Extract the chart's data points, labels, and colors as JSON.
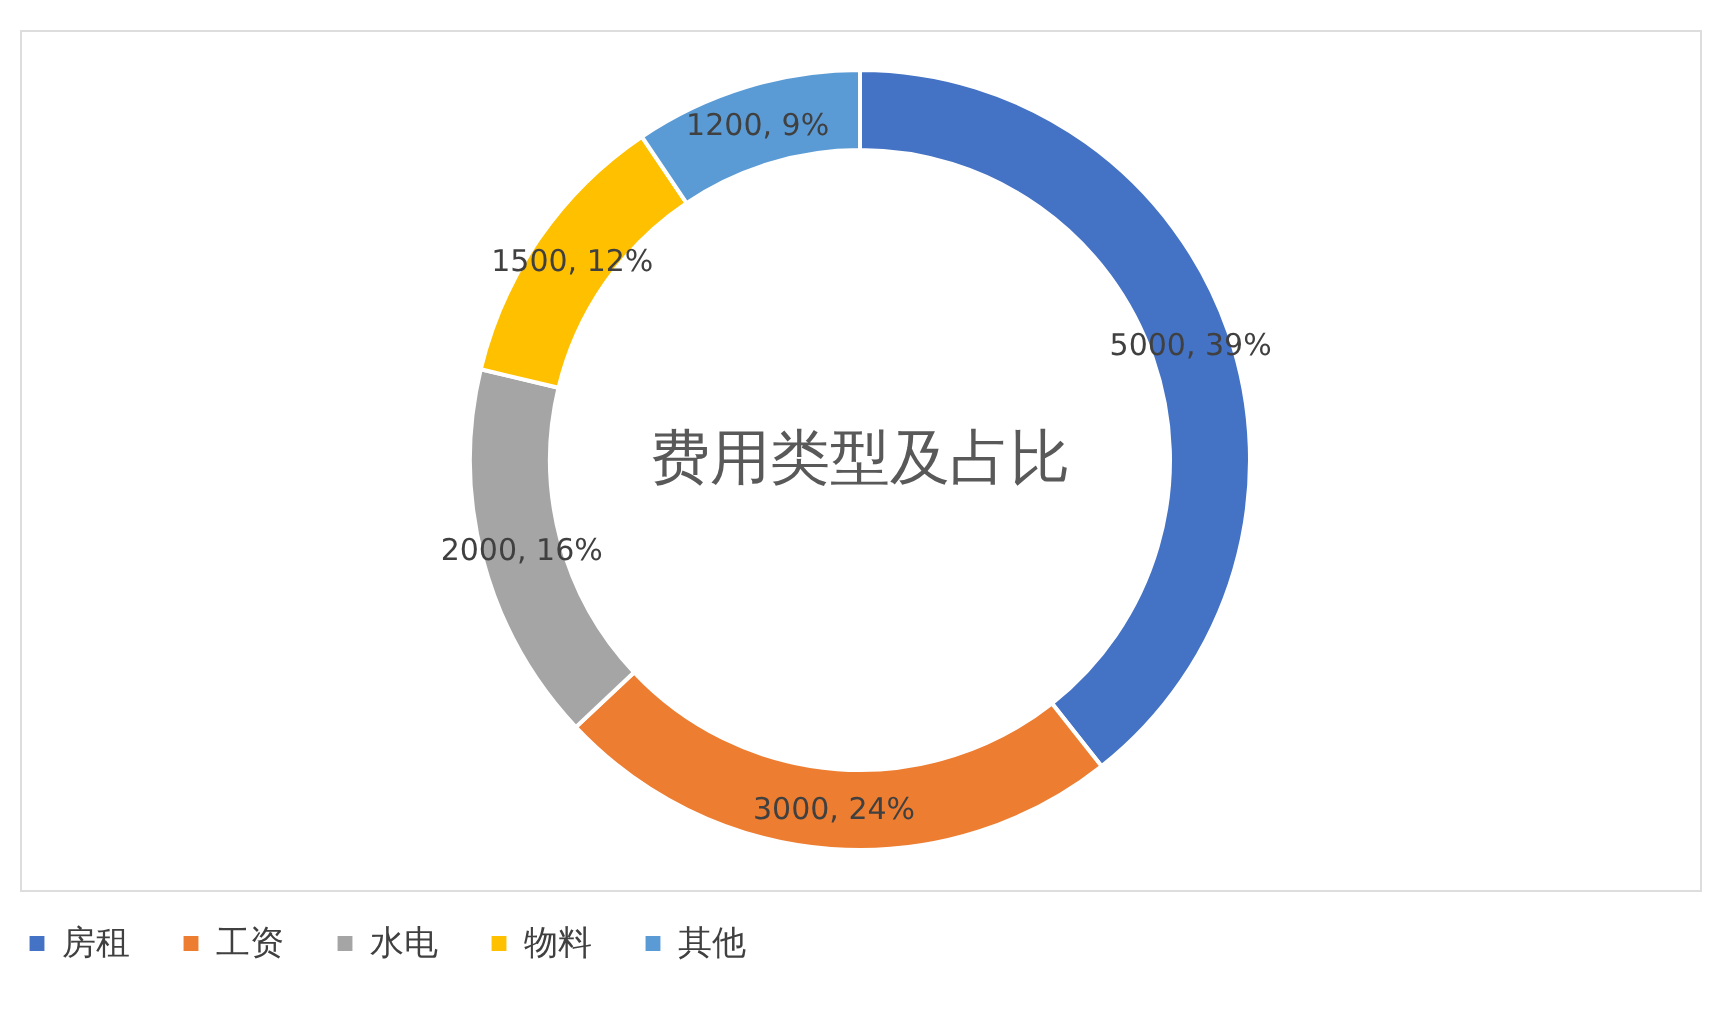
{
  "chart_data": {
    "type": "donut",
    "title": "费用类型及占比",
    "categories": [
      "房租",
      "工资",
      "水电",
      "物料",
      "其他"
    ],
    "values": [
      5000,
      3000,
      2000,
      1500,
      1200
    ],
    "colors": [
      "#4472c4",
      "#ed7d31",
      "#a5a5a5",
      "#ffc000",
      "#5b9bd5"
    ],
    "value_labels": [
      "5000, 39%",
      "3000, 24%",
      "2000, 16%",
      "1500, 12%",
      "1200, 9%"
    ],
    "legend": "bottom"
  }
}
